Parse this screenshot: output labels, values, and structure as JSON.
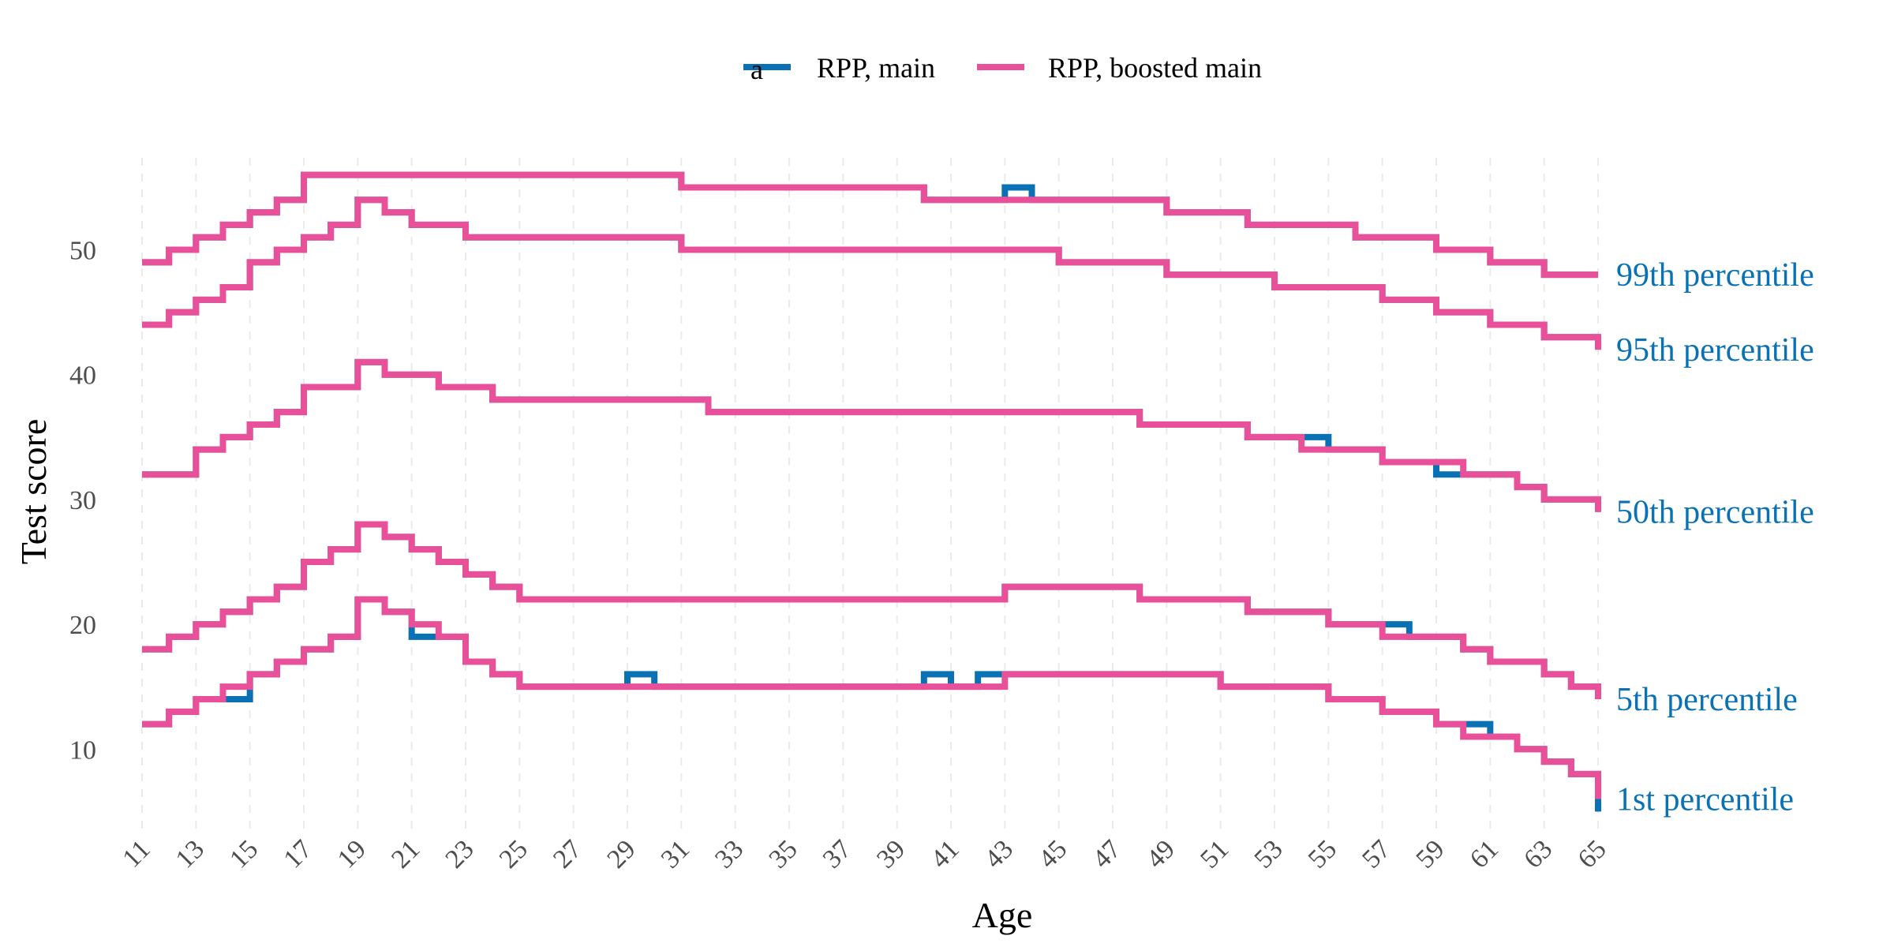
{
  "chart_data": {
    "type": "line",
    "step": true,
    "xlabel": "Age",
    "ylabel": "Test score",
    "xlim": [
      11,
      65
    ],
    "ylim": [
      3,
      58
    ],
    "x_ticks": [
      11,
      13,
      15,
      17,
      19,
      21,
      23,
      25,
      27,
      29,
      31,
      33,
      35,
      37,
      39,
      41,
      43,
      45,
      47,
      49,
      51,
      53,
      55,
      57,
      59,
      61,
      63,
      65
    ],
    "y_ticks": [
      10,
      20,
      30,
      40,
      50
    ],
    "grid": "vertical dashed",
    "legend_position": "top",
    "legend_glyph": "a",
    "series": [
      {
        "name": "RPP, main",
        "color": "#0a72b4"
      },
      {
        "name": "RPP, boosted main",
        "color": "#e8519a"
      }
    ],
    "curves": [
      {
        "label": "99th percentile",
        "boosted": [
          [
            11,
            49
          ],
          [
            12,
            50
          ],
          [
            13,
            51
          ],
          [
            14,
            52
          ],
          [
            15,
            53
          ],
          [
            16,
            54
          ],
          [
            17,
            56
          ],
          [
            31,
            55
          ],
          [
            40,
            54
          ],
          [
            49,
            53
          ],
          [
            52,
            52
          ],
          [
            56,
            51
          ],
          [
            59,
            50
          ],
          [
            61,
            49
          ],
          [
            63,
            48
          ],
          [
            65,
            48
          ]
        ],
        "main": [
          [
            11,
            49
          ],
          [
            12,
            50
          ],
          [
            13,
            51
          ],
          [
            14,
            52
          ],
          [
            15,
            53
          ],
          [
            16,
            54
          ],
          [
            17,
            56
          ],
          [
            31,
            55
          ],
          [
            40,
            54
          ],
          [
            43,
            55
          ],
          [
            44,
            54
          ],
          [
            49,
            53
          ],
          [
            52,
            52
          ],
          [
            56,
            51
          ],
          [
            59,
            50
          ],
          [
            61,
            49
          ],
          [
            63,
            48
          ],
          [
            65,
            48
          ]
        ]
      },
      {
        "label": "95th percentile",
        "boosted": [
          [
            11,
            44
          ],
          [
            12,
            45
          ],
          [
            13,
            46
          ],
          [
            14,
            47
          ],
          [
            15,
            49
          ],
          [
            16,
            50
          ],
          [
            17,
            51
          ],
          [
            18,
            52
          ],
          [
            19,
            54
          ],
          [
            20,
            53
          ],
          [
            21,
            52
          ],
          [
            23,
            51
          ],
          [
            31,
            50
          ],
          [
            45,
            49
          ],
          [
            49,
            48
          ],
          [
            53,
            47
          ],
          [
            57,
            46
          ],
          [
            59,
            45
          ],
          [
            61,
            44
          ],
          [
            63,
            43
          ],
          [
            65,
            42
          ]
        ],
        "main": [
          [
            11,
            44
          ],
          [
            12,
            45
          ],
          [
            13,
            46
          ],
          [
            14,
            47
          ],
          [
            15,
            49
          ],
          [
            16,
            50
          ],
          [
            17,
            51
          ],
          [
            18,
            52
          ],
          [
            19,
            54
          ],
          [
            20,
            53
          ],
          [
            21,
            52
          ],
          [
            23,
            51
          ],
          [
            31,
            50
          ],
          [
            45,
            49
          ],
          [
            49,
            48
          ],
          [
            53,
            47
          ],
          [
            57,
            46
          ],
          [
            59,
            45
          ],
          [
            61,
            44
          ],
          [
            63,
            43
          ],
          [
            65,
            42
          ]
        ]
      },
      {
        "label": "50th percentile",
        "boosted": [
          [
            11,
            32
          ],
          [
            13,
            34
          ],
          [
            14,
            35
          ],
          [
            15,
            36
          ],
          [
            16,
            37
          ],
          [
            17,
            39
          ],
          [
            19,
            41
          ],
          [
            20,
            40
          ],
          [
            22,
            39
          ],
          [
            24,
            38
          ],
          [
            32,
            37
          ],
          [
            48,
            36
          ],
          [
            52,
            35
          ],
          [
            54,
            34
          ],
          [
            57,
            33
          ],
          [
            60,
            32
          ],
          [
            62,
            31
          ],
          [
            63,
            30
          ],
          [
            65,
            29
          ]
        ],
        "main": [
          [
            11,
            32
          ],
          [
            13,
            34
          ],
          [
            14,
            35
          ],
          [
            15,
            36
          ],
          [
            16,
            37
          ],
          [
            17,
            39
          ],
          [
            19,
            41
          ],
          [
            20,
            40
          ],
          [
            22,
            39
          ],
          [
            24,
            38
          ],
          [
            32,
            37
          ],
          [
            48,
            36
          ],
          [
            52,
            35
          ],
          [
            54,
            35
          ],
          [
            55,
            34
          ],
          [
            57,
            33
          ],
          [
            59,
            32
          ],
          [
            60,
            32
          ],
          [
            62,
            31
          ],
          [
            63,
            30
          ],
          [
            65,
            29
          ]
        ]
      },
      {
        "label": "5th percentile",
        "boosted": [
          [
            11,
            18
          ],
          [
            12,
            19
          ],
          [
            13,
            20
          ],
          [
            14,
            21
          ],
          [
            15,
            22
          ],
          [
            16,
            23
          ],
          [
            17,
            25
          ],
          [
            18,
            26
          ],
          [
            19,
            28
          ],
          [
            20,
            27
          ],
          [
            21,
            26
          ],
          [
            22,
            25
          ],
          [
            23,
            24
          ],
          [
            24,
            23
          ],
          [
            25,
            22
          ],
          [
            43,
            23
          ],
          [
            48,
            22
          ],
          [
            52,
            21
          ],
          [
            55,
            20
          ],
          [
            57,
            19
          ],
          [
            60,
            18
          ],
          [
            61,
            17
          ],
          [
            63,
            16
          ],
          [
            64,
            15
          ],
          [
            65,
            14
          ]
        ],
        "main": [
          [
            11,
            18
          ],
          [
            12,
            19
          ],
          [
            13,
            20
          ],
          [
            14,
            21
          ],
          [
            15,
            22
          ],
          [
            16,
            23
          ],
          [
            17,
            25
          ],
          [
            18,
            26
          ],
          [
            19,
            28
          ],
          [
            20,
            27
          ],
          [
            21,
            26
          ],
          [
            22,
            25
          ],
          [
            23,
            24
          ],
          [
            24,
            23
          ],
          [
            25,
            22
          ],
          [
            43,
            23
          ],
          [
            48,
            22
          ],
          [
            52,
            21
          ],
          [
            55,
            20
          ],
          [
            57,
            20
          ],
          [
            58,
            19
          ],
          [
            60,
            18
          ],
          [
            61,
            17
          ],
          [
            63,
            16
          ],
          [
            64,
            15
          ],
          [
            65,
            14
          ]
        ]
      },
      {
        "label": "1st percentile",
        "boosted": [
          [
            11,
            12
          ],
          [
            12,
            13
          ],
          [
            13,
            14
          ],
          [
            14,
            15
          ],
          [
            15,
            16
          ],
          [
            16,
            17
          ],
          [
            17,
            18
          ],
          [
            18,
            19
          ],
          [
            19,
            22
          ],
          [
            20,
            21
          ],
          [
            21,
            20
          ],
          [
            22,
            19
          ],
          [
            23,
            17
          ],
          [
            24,
            16
          ],
          [
            25,
            15
          ],
          [
            43,
            16
          ],
          [
            51,
            15
          ],
          [
            55,
            14
          ],
          [
            57,
            13
          ],
          [
            59,
            12
          ],
          [
            60,
            11
          ],
          [
            62,
            10
          ],
          [
            63,
            9
          ],
          [
            64,
            8
          ],
          [
            65,
            6
          ]
        ],
        "main": [
          [
            11,
            12
          ],
          [
            12,
            13
          ],
          [
            13,
            14
          ],
          [
            14,
            14
          ],
          [
            15,
            16
          ],
          [
            16,
            17
          ],
          [
            17,
            18
          ],
          [
            18,
            19
          ],
          [
            19,
            22
          ],
          [
            20,
            21
          ],
          [
            21,
            19
          ],
          [
            22,
            19
          ],
          [
            23,
            17
          ],
          [
            24,
            16
          ],
          [
            25,
            15
          ],
          [
            29,
            16
          ],
          [
            30,
            15
          ],
          [
            40,
            16
          ],
          [
            41,
            15
          ],
          [
            42,
            16
          ],
          [
            43,
            16
          ],
          [
            51,
            15
          ],
          [
            55,
            14
          ],
          [
            57,
            13
          ],
          [
            59,
            12
          ],
          [
            60,
            12
          ],
          [
            61,
            11
          ],
          [
            62,
            10
          ],
          [
            63,
            9
          ],
          [
            64,
            8
          ],
          [
            65,
            5
          ]
        ]
      }
    ]
  }
}
